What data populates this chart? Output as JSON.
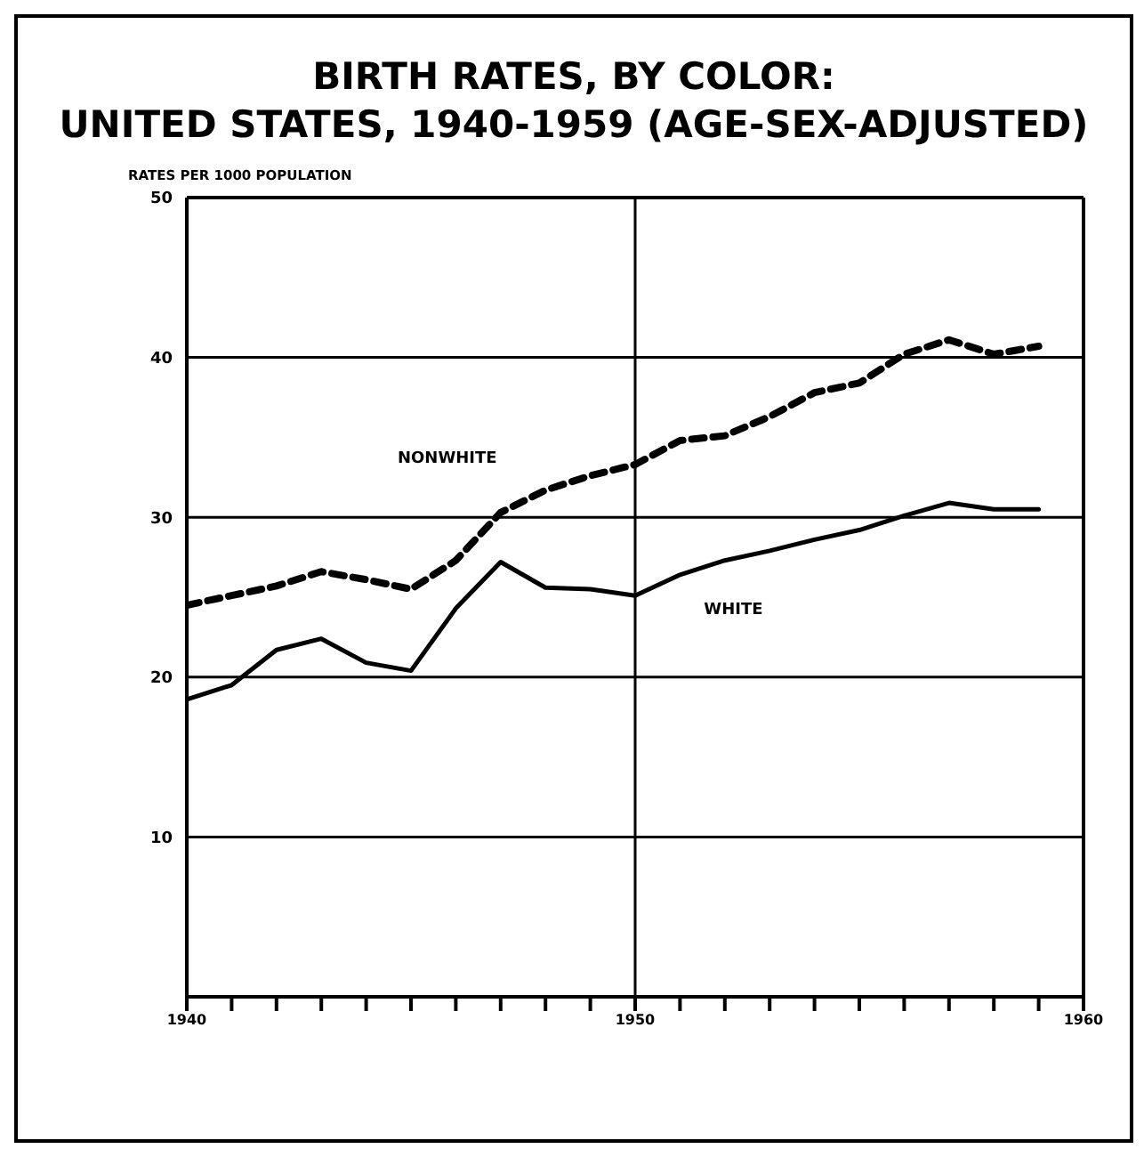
{
  "chart_data": {
    "type": "line",
    "title": "BIRTH RATES, BY COLOR:\nUNITED STATES, 1940-1959 (AGE-SEX-ADJUSTED)",
    "ylabel": "RATES PER 1000 POPULATION",
    "x": [
      1940,
      1941,
      1942,
      1943,
      1944,
      1945,
      1946,
      1947,
      1948,
      1949,
      1950,
      1951,
      1952,
      1953,
      1954,
      1955,
      1956,
      1957,
      1958,
      1959
    ],
    "series": [
      {
        "name": "NONWHITE",
        "color": "#000000",
        "line_style": "dashed",
        "values": [
          24.5,
          25.1,
          25.7,
          26.6,
          26.1,
          25.5,
          27.3,
          30.3,
          31.7,
          32.6,
          33.3,
          34.8,
          35.1,
          36.3,
          37.8,
          38.4,
          40.2,
          41.1,
          40.2,
          40.7
        ]
      },
      {
        "name": "WHITE",
        "color": "#000000",
        "line_style": "solid",
        "values": [
          18.6,
          19.5,
          21.7,
          22.4,
          20.9,
          20.4,
          24.3,
          27.2,
          25.6,
          25.5,
          25.1,
          26.4,
          27.3,
          27.9,
          28.6,
          29.2,
          30.1,
          30.9,
          30.5,
          30.5
        ]
      }
    ],
    "xlim": [
      1940,
      1960
    ],
    "xticks": [
      1940,
      {
        "value": 1941,
        "label": null
      },
      {
        "value": 1942,
        "label": null
      },
      {
        "value": 1943,
        "label": null
      },
      {
        "value": 1944,
        "label": null
      },
      {
        "value": 1945,
        "label": null
      },
      {
        "value": 1946,
        "label": null
      },
      {
        "value": 1947,
        "label": null
      },
      {
        "value": 1948,
        "label": null
      },
      {
        "value": 1949,
        "label": null
      },
      1950,
      {
        "value": 1951,
        "label": null
      },
      {
        "value": 1952,
        "label": null
      },
      {
        "value": 1953,
        "label": null
      },
      {
        "value": 1954,
        "label": null
      },
      {
        "value": 1955,
        "label": null
      },
      {
        "value": 1956,
        "label": null
      },
      {
        "value": 1957,
        "label": null
      },
      {
        "value": 1958,
        "label": null
      },
      {
        "value": 1959,
        "label": null
      },
      1960
    ],
    "ylim": [
      0,
      50
    ],
    "yticks": [
      10,
      20,
      30,
      40,
      50
    ],
    "ref_lines": [
      {
        "axis": "x",
        "value": 1950,
        "color": "#000000"
      }
    ],
    "grid": "y",
    "marker": "none"
  }
}
